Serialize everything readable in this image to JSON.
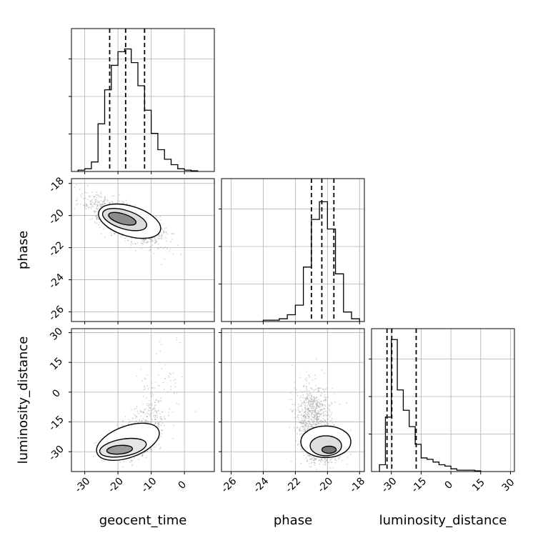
{
  "figure": {
    "title": "",
    "parameters": [
      "geocent_time",
      "phase",
      "luminosity_distance"
    ]
  },
  "chart_data": [
    {
      "type": "bar",
      "panel": "hist-geocent_time",
      "xlabel": "",
      "ylabel": "",
      "xlim": [
        -34,
        9
      ],
      "ylim": [
        0,
        1
      ],
      "bin_edges": [
        -32,
        -30,
        -28,
        -26,
        -24,
        -22,
        -20,
        -18,
        -16,
        -14,
        -12,
        -10,
        -8,
        -6,
        -4,
        -2,
        0,
        2,
        4
      ],
      "values": [
        0.01,
        0.02,
        0.07,
        0.35,
        0.6,
        0.78,
        0.88,
        0.9,
        0.8,
        0.63,
        0.45,
        0.28,
        0.16,
        0.09,
        0.05,
        0.02,
        0.01,
        0.005
      ],
      "quantile_lines": [
        -22.5,
        -17.7,
        -12
      ],
      "x_ticks": [
        -30,
        -20,
        -10,
        0
      ],
      "x_tick_labels": [],
      "grid": true
    },
    {
      "type": "bar",
      "panel": "hist-phase",
      "xlabel": "",
      "ylabel": "",
      "xlim": [
        -26.6,
        -17.7
      ],
      "ylim": [
        0,
        1
      ],
      "bin_edges": [
        -24,
        -23.5,
        -23,
        -22.5,
        -22,
        -21.5,
        -21,
        -20.5,
        -20,
        -19.5,
        -19,
        -18.5,
        -18
      ],
      "values": [
        0.01,
        0.01,
        0.02,
        0.05,
        0.12,
        0.4,
        0.75,
        0.88,
        0.68,
        0.35,
        0.07,
        0.02
      ],
      "quantile_lines": [
        -21.0,
        -20.35,
        -19.6
      ],
      "x_ticks": [
        -26,
        -24,
        -22,
        -20,
        -18
      ],
      "x_tick_labels": [],
      "grid": true
    },
    {
      "type": "bar",
      "panel": "hist-luminosity_distance",
      "xlabel": "luminosity_distance",
      "ylabel": "",
      "xlim": [
        -40,
        32
      ],
      "ylim": [
        0,
        1
      ],
      "bin_edges": [
        -36,
        -33,
        -30,
        -27,
        -24,
        -21,
        -18,
        -15,
        -12,
        -9,
        -6,
        -3,
        0,
        3,
        6,
        9,
        12,
        15
      ],
      "values": [
        0.05,
        0.4,
        0.97,
        0.6,
        0.45,
        0.33,
        0.2,
        0.1,
        0.09,
        0.07,
        0.05,
        0.04,
        0.02,
        0.01,
        0.01,
        0.01,
        0.005
      ],
      "quantile_lines": [
        -32.2,
        -29.8,
        -17.5
      ],
      "x_ticks": [
        -30,
        -15,
        0,
        15,
        30
      ],
      "x_tick_labels": [
        "-30",
        "-15",
        "0",
        "15",
        "30"
      ],
      "grid": true
    },
    {
      "type": "scatter",
      "panel": "contour-geocent_time-phase",
      "xlabel": "",
      "ylabel": "phase",
      "xlim": [
        -34,
        9
      ],
      "ylim": [
        -26.6,
        -17.7
      ],
      "x_ticks": [
        -30,
        -20,
        -10,
        0
      ],
      "y_ticks": [
        -26,
        -24,
        -22,
        -20,
        -18
      ],
      "y_tick_labels": [
        "-26",
        "-24",
        "-22",
        "-20",
        "-18"
      ],
      "density_peak": {
        "x": -19.5,
        "y": -20.1
      },
      "grid": true
    },
    {
      "type": "scatter",
      "panel": "contour-geocent_time-luminosity_distance",
      "xlabel": "geocent_time",
      "ylabel": "luminosity_distance",
      "xlim": [
        -34,
        9
      ],
      "ylim": [
        -40,
        32
      ],
      "x_ticks": [
        -30,
        -20,
        -10,
        0
      ],
      "x_tick_labels": [
        "-30",
        "-20",
        "-10",
        "0"
      ],
      "y_ticks": [
        -30,
        -15,
        0,
        15,
        30
      ],
      "y_tick_labels": [
        "-30",
        "-15",
        "0",
        "15",
        "30"
      ],
      "density_peak": {
        "x": -20,
        "y": -29
      },
      "grid": true
    },
    {
      "type": "scatter",
      "panel": "contour-phase-luminosity_distance",
      "xlabel": "phase",
      "ylabel": "",
      "xlim": [
        -26.6,
        -17.7
      ],
      "ylim": [
        -40,
        32
      ],
      "x_ticks": [
        -26,
        -24,
        -22,
        -20,
        -18
      ],
      "x_tick_labels": [
        "-26",
        "-24",
        "-22",
        "-20",
        "-18"
      ],
      "y_ticks": [
        -30,
        -15,
        0,
        15,
        30
      ],
      "density_peak": {
        "x": -20,
        "y": -29
      },
      "grid": true
    }
  ]
}
